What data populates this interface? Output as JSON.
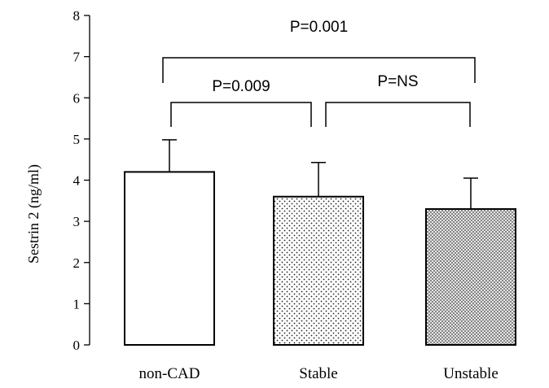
{
  "chart_data": {
    "type": "bar",
    "title": "",
    "xlabel": "",
    "ylabel": "Sestrin 2 (ng/ml)",
    "ylim": [
      0,
      8
    ],
    "yticks": [
      "0",
      "1",
      "2",
      "3",
      "4",
      "5",
      "6",
      "7",
      "8"
    ],
    "grid": false,
    "categories": [
      "non-CAD",
      "Stable",
      "Unstable"
    ],
    "values": [
      4.2,
      3.6,
      3.3
    ],
    "error": [
      0.78,
      0.83,
      0.75
    ],
    "bar_fill": [
      "white",
      "sparse-dots",
      "dense-dots"
    ],
    "comparisons": [
      {
        "label": "P=0.001",
        "from": 0,
        "to": 2
      },
      {
        "label": "P=0.009",
        "from": 0,
        "to": 1
      },
      {
        "label": "P=NS",
        "from": 1,
        "to": 2
      }
    ]
  }
}
